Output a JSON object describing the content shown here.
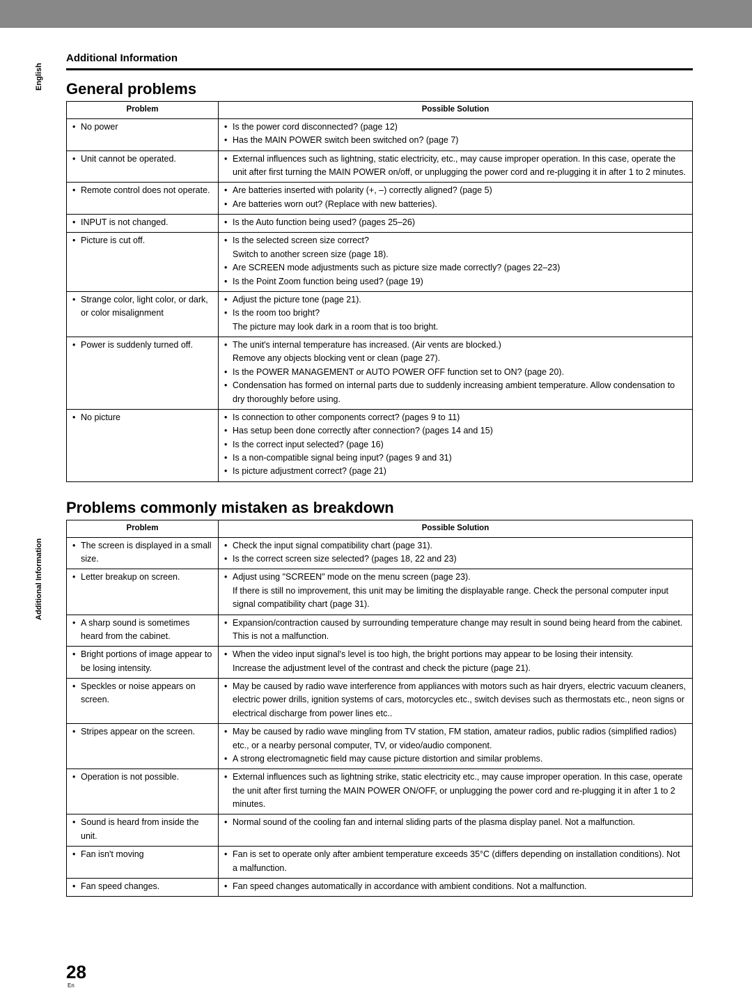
{
  "side_labels": {
    "english": "English",
    "additional": "Additional Information"
  },
  "section_title": "Additional Information",
  "heading1": "General problems",
  "heading2": "Problems commonly mistaken as breakdown",
  "page_number": "28",
  "page_lang": "En",
  "table_headers": {
    "problem": "Problem",
    "solution": "Possible Solution"
  },
  "table1": [
    {
      "problem": [
        "No power"
      ],
      "solution": [
        "Is the power cord disconnected? (page 12)",
        "Has the MAIN POWER switch been switched on? (page 7)"
      ]
    },
    {
      "problem": [
        "Unit cannot be operated."
      ],
      "solution": [
        "External influences such as lightning, static electricity, etc., may cause improper operation. In this case, operate the unit after first turning the MAIN POWER on/off, or unplugging the power cord and re-plugging it in after 1 to 2 minutes."
      ]
    },
    {
      "problem": [
        "Remote control does not operate."
      ],
      "solution": [
        "Are batteries inserted with polarity (+, –) correctly aligned? (page 5)",
        "Are batteries worn out? (Replace with new batteries)."
      ]
    },
    {
      "problem": [
        "INPUT is not changed."
      ],
      "solution": [
        "Is the Auto function being used? (pages 25–26)"
      ]
    },
    {
      "problem": [
        "Picture is cut off."
      ],
      "solution": [
        "Is the selected screen size correct?\nSwitch to another screen size (page 18).",
        "Are SCREEN mode adjustments such as picture size made correctly? (pages 22–23)",
        "Is the Point Zoom function being used? (page 19)"
      ]
    },
    {
      "problem": [
        "Strange color, light color, or dark, or color misalignment"
      ],
      "solution": [
        "Adjust the picture tone (page 21).",
        "Is the room too bright?\nThe picture may look dark in a room that is too bright."
      ]
    },
    {
      "problem": [
        "Power is suddenly turned off."
      ],
      "solution": [
        "The unit's internal temperature has increased. (Air vents are blocked.)\nRemove any objects blocking vent or clean (page 27).",
        "Is the POWER MANAGEMENT or AUTO POWER OFF function set to ON? (page 20).",
        "Condensation has formed on internal parts due to suddenly increasing ambient temperature. Allow condensation to dry thoroughly before using."
      ]
    },
    {
      "problem": [
        "No picture"
      ],
      "solution": [
        "Is connection to other components correct? (pages 9 to 11)",
        "Has setup been done correctly after connection? (pages 14 and 15)",
        "Is the correct input selected? (page 16)",
        "Is a non-compatible signal being input? (pages 9 and 31)",
        "Is picture adjustment correct? (page 21)"
      ]
    }
  ],
  "table2": [
    {
      "problem": [
        "The screen is displayed in a small size."
      ],
      "solution": [
        "Check the input signal compatibility chart (page 31).",
        "Is the correct screen size selected? (pages 18, 22 and 23)"
      ]
    },
    {
      "problem": [
        "Letter breakup on screen."
      ],
      "solution": [
        "Adjust using \"SCREEN\" mode on the menu screen (page 23).\nIf there is still no improvement, this unit may be limiting the displayable range. Check the personal computer input signal compatibility chart (page 31)."
      ]
    },
    {
      "problem": [
        "A sharp sound is sometimes heard from the cabinet."
      ],
      "solution": [
        "Expansion/contraction caused by surrounding temperature change may result in sound being heard from the cabinet. This is not a malfunction."
      ]
    },
    {
      "problem": [
        "Bright portions of image appear to be losing intensity."
      ],
      "solution": [
        "When the video input signal's level is too high, the bright portions may appear to be losing their intensity.\nIncrease the adjustment level of the contrast and check the picture (page 21)."
      ]
    },
    {
      "problem": [
        "Speckles or noise appears on screen."
      ],
      "solution": [
        "May be caused by radio wave interference from appliances with motors such as hair dryers, electric vacuum cleaners, electric power drills, ignition systems of cars, motorcycles etc., switch devises such as thermostats etc., neon signs or electrical discharge from power lines etc.."
      ]
    },
    {
      "problem": [
        "Stripes appear on the screen."
      ],
      "solution": [
        "May be caused by radio wave mingling from TV station, FM station, amateur radios, public radios (simplified radios) etc., or a nearby personal computer, TV, or video/audio component.",
        "A strong electromagnetic field may cause picture distortion and similar problems."
      ]
    },
    {
      "problem": [
        "Operation is not possible."
      ],
      "solution": [
        "External influences such as lightning strike, static electricity etc., may cause improper operation. In this case, operate the unit after first turning the MAIN POWER ON/OFF, or unplugging the power cord and re-plugging it in after 1 to 2 minutes."
      ]
    },
    {
      "problem": [
        "Sound is heard from inside the unit."
      ],
      "solution": [
        "Normal sound of the cooling fan and internal sliding parts of the plasma display panel. Not a malfunction."
      ]
    },
    {
      "problem": [
        "Fan isn't moving"
      ],
      "solution": [
        "Fan is set to operate only after ambient temperature exceeds 35°C (differs depending on installation conditions). Not a malfunction."
      ]
    },
    {
      "problem": [
        "Fan speed changes."
      ],
      "solution": [
        "Fan speed changes automatically in accordance with ambient conditions. Not a malfunction."
      ]
    }
  ]
}
